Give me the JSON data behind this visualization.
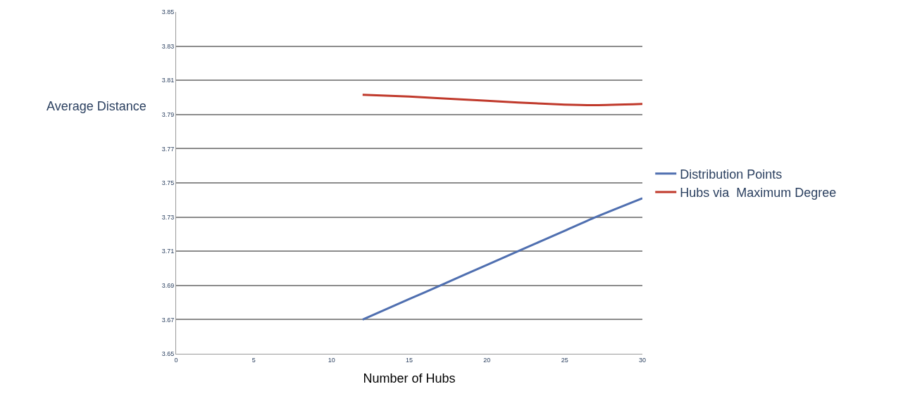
{
  "chart_data": {
    "type": "line",
    "xlabel": "Number of Hubs",
    "ylabel": "Average Distance",
    "x": [
      12,
      15,
      17,
      20,
      22,
      25,
      27,
      30
    ],
    "series": [
      {
        "name": "Distribution Points",
        "color": "#4f6fb0",
        "values": [
          3.67,
          3.682,
          3.69,
          3.702,
          3.71,
          3.722,
          3.73,
          3.741
        ]
      },
      {
        "name": "Hubs via  Maximum Degree",
        "color": "#c0392b",
        "values": [
          3.8015,
          3.8005,
          3.7995,
          3.798,
          3.797,
          3.7958,
          3.7955,
          3.7962
        ]
      }
    ],
    "xlim": [
      0,
      30
    ],
    "xticks": [
      0,
      5,
      10,
      15,
      20,
      25,
      30
    ],
    "ylim": [
      3.65,
      3.85
    ],
    "yticks": [
      3.65,
      3.67,
      3.69,
      3.71,
      3.73,
      3.75,
      3.77,
      3.79,
      3.81,
      3.83,
      3.85
    ],
    "grid": "y",
    "legend": "right",
    "marker": "none",
    "line_style": "solid"
  }
}
